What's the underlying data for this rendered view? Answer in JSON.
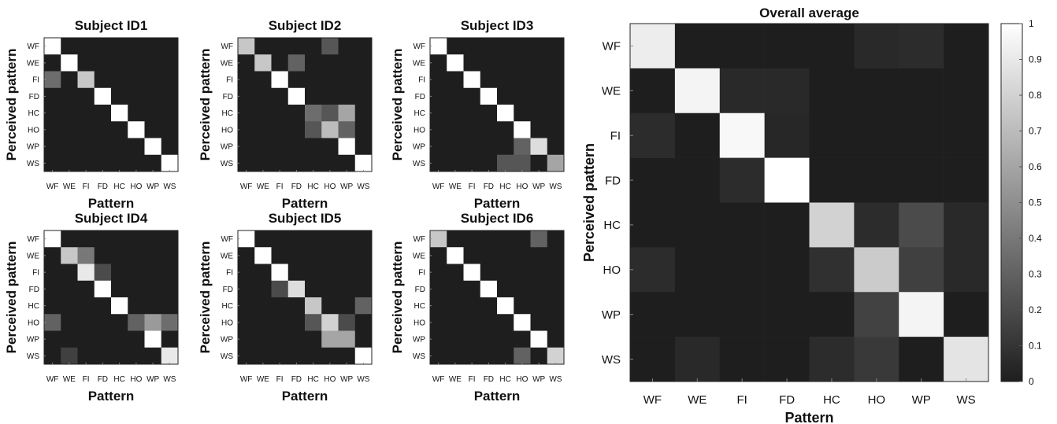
{
  "chart_data": [
    {
      "type": "heatmap",
      "title": "Subject ID1",
      "xlabel": "Pattern",
      "ylabel": "Perceived pattern",
      "x_categories": [
        "WF",
        "WE",
        "FI",
        "FD",
        "HC",
        "HO",
        "WP",
        "WS"
      ],
      "y_categories": [
        "WF",
        "WE",
        "FI",
        "FD",
        "HC",
        "HO",
        "WP",
        "WS"
      ],
      "values": [
        [
          1,
          0,
          0,
          0,
          0,
          0,
          0,
          0
        ],
        [
          0,
          1,
          0,
          0,
          0,
          0,
          0,
          0
        ],
        [
          0.35,
          0,
          0.75,
          0,
          0,
          0,
          0,
          0
        ],
        [
          0,
          0,
          0,
          1,
          0,
          0,
          0,
          0
        ],
        [
          0,
          0,
          0,
          0,
          1,
          0,
          0,
          0
        ],
        [
          0,
          0,
          0,
          0,
          0,
          1,
          0,
          0
        ],
        [
          0,
          0,
          0,
          0,
          0,
          0,
          1,
          0
        ],
        [
          0,
          0,
          0,
          0,
          0,
          0,
          0,
          1
        ]
      ]
    },
    {
      "type": "heatmap",
      "title": "Subject ID2",
      "xlabel": "Pattern",
      "ylabel": "Perceived pattern",
      "x_categories": [
        "WF",
        "WE",
        "FI",
        "FD",
        "HC",
        "HO",
        "WP",
        "WS"
      ],
      "y_categories": [
        "WF",
        "WE",
        "FI",
        "FD",
        "HC",
        "HO",
        "WP",
        "WS"
      ],
      "values": [
        [
          0.75,
          0,
          0,
          0,
          0,
          0.25,
          0,
          0
        ],
        [
          0,
          0.75,
          0,
          0.3,
          0,
          0,
          0,
          0
        ],
        [
          0,
          0,
          1,
          0,
          0,
          0,
          0,
          0
        ],
        [
          0,
          0,
          0,
          1,
          0,
          0,
          0,
          0
        ],
        [
          0,
          0,
          0,
          0,
          0.35,
          0.25,
          0.6,
          0
        ],
        [
          0,
          0,
          0,
          0,
          0.25,
          0.7,
          0.3,
          0
        ],
        [
          0,
          0,
          0,
          0,
          0,
          0,
          1,
          0
        ],
        [
          0,
          0,
          0,
          0,
          0,
          0,
          0,
          1
        ]
      ]
    },
    {
      "type": "heatmap",
      "title": "Subject ID3",
      "xlabel": "Pattern",
      "ylabel": "Perceived pattern",
      "x_categories": [
        "WF",
        "WE",
        "FI",
        "FD",
        "HC",
        "HO",
        "WP",
        "WS"
      ],
      "y_categories": [
        "WF",
        "WE",
        "FI",
        "FD",
        "HC",
        "HO",
        "WP",
        "WS"
      ],
      "values": [
        [
          1,
          0,
          0,
          0,
          0,
          0,
          0,
          0
        ],
        [
          0,
          1,
          0,
          0,
          0,
          0,
          0,
          0
        ],
        [
          0,
          0,
          1,
          0,
          0,
          0,
          0,
          0
        ],
        [
          0,
          0,
          0,
          1,
          0,
          0,
          0,
          0
        ],
        [
          0,
          0,
          0,
          0,
          1,
          0,
          0,
          0
        ],
        [
          0,
          0,
          0,
          0,
          0,
          1,
          0,
          0
        ],
        [
          0,
          0,
          0,
          0,
          0,
          0.3,
          0.85,
          0
        ],
        [
          0,
          0,
          0,
          0,
          0.25,
          0.25,
          0,
          0.6
        ]
      ]
    },
    {
      "type": "heatmap",
      "title": "Subject ID4",
      "xlabel": "Pattern",
      "ylabel": "Perceived pattern",
      "x_categories": [
        "WF",
        "WE",
        "FI",
        "FD",
        "HC",
        "HO",
        "WP",
        "WS"
      ],
      "y_categories": [
        "WF",
        "WE",
        "FI",
        "FD",
        "HC",
        "HO",
        "WP",
        "WS"
      ],
      "values": [
        [
          1,
          0,
          0,
          0,
          0,
          0,
          0,
          0
        ],
        [
          0,
          0.75,
          0.4,
          0,
          0,
          0,
          0,
          0
        ],
        [
          0,
          0,
          0.9,
          0.2,
          0,
          0,
          0,
          0
        ],
        [
          0,
          0,
          0,
          1,
          0,
          0,
          0,
          0
        ],
        [
          0,
          0,
          0,
          0,
          1,
          0,
          0,
          0
        ],
        [
          0.3,
          0,
          0,
          0,
          0,
          0.3,
          0.55,
          0.35
        ],
        [
          0,
          0,
          0,
          0,
          0,
          0,
          1,
          0
        ],
        [
          0,
          0.15,
          0,
          0,
          0,
          0,
          0,
          0.9
        ]
      ]
    },
    {
      "type": "heatmap",
      "title": "Subject ID5",
      "xlabel": "Pattern",
      "ylabel": "Perceived pattern",
      "x_categories": [
        "WF",
        "WE",
        "FI",
        "FD",
        "HC",
        "HO",
        "WP",
        "WS"
      ],
      "y_categories": [
        "WF",
        "WE",
        "FI",
        "FD",
        "HC",
        "HO",
        "WP",
        "WS"
      ],
      "values": [
        [
          1,
          0,
          0,
          0,
          0,
          0,
          0,
          0
        ],
        [
          0,
          1,
          0,
          0,
          0,
          0,
          0,
          0
        ],
        [
          0,
          0,
          1,
          0,
          0,
          0,
          0,
          0
        ],
        [
          0,
          0,
          0.2,
          0.85,
          0,
          0,
          0,
          0
        ],
        [
          0,
          0,
          0,
          0,
          0.75,
          0,
          0,
          0.3
        ],
        [
          0,
          0,
          0,
          0,
          0.25,
          0.8,
          0.2,
          0
        ],
        [
          0,
          0,
          0,
          0,
          0,
          0.6,
          0.6,
          0
        ],
        [
          0,
          0,
          0,
          0,
          0,
          0,
          0,
          1
        ]
      ]
    },
    {
      "type": "heatmap",
      "title": "Subject ID6",
      "xlabel": "Pattern",
      "ylabel": "Perceived pattern",
      "x_categories": [
        "WF",
        "WE",
        "FI",
        "FD",
        "HC",
        "HO",
        "WP",
        "WS"
      ],
      "y_categories": [
        "WF",
        "WE",
        "FI",
        "FD",
        "HC",
        "HO",
        "WP",
        "WS"
      ],
      "values": [
        [
          0.75,
          0,
          0,
          0,
          0,
          0,
          0.3,
          0
        ],
        [
          0,
          1,
          0,
          0,
          0,
          0,
          0,
          0
        ],
        [
          0,
          0,
          1,
          0,
          0,
          0,
          0,
          0
        ],
        [
          0,
          0,
          0,
          1,
          0,
          0,
          0,
          0
        ],
        [
          0,
          0,
          0,
          0,
          1,
          0,
          0,
          0
        ],
        [
          0,
          0,
          0,
          0,
          0,
          1,
          0,
          0
        ],
        [
          0,
          0,
          0,
          0,
          0,
          0,
          1,
          0
        ],
        [
          0,
          0,
          0,
          0,
          0,
          0.3,
          0,
          0.8
        ]
      ]
    },
    {
      "type": "heatmap",
      "title": "Overall average",
      "xlabel": "Pattern",
      "ylabel": "Perceived pattern",
      "x_categories": [
        "WF",
        "WE",
        "FI",
        "FD",
        "HC",
        "HO",
        "WP",
        "WS"
      ],
      "y_categories": [
        "WF",
        "WE",
        "FI",
        "FD",
        "HC",
        "HO",
        "WP",
        "WS"
      ],
      "values": [
        [
          0.92,
          0,
          0,
          0,
          0,
          0.05,
          0.06,
          0
        ],
        [
          0,
          0.95,
          0.05,
          0.05,
          0,
          0,
          0,
          0
        ],
        [
          0.06,
          0,
          0.97,
          0.04,
          0,
          0,
          0,
          0
        ],
        [
          0,
          0,
          0.06,
          1,
          0,
          0,
          0,
          0
        ],
        [
          0,
          0,
          0,
          0,
          0.8,
          0.06,
          0.2,
          0.05
        ],
        [
          0.06,
          0,
          0,
          0,
          0.08,
          0.77,
          0.15,
          0.05
        ],
        [
          0,
          0,
          0,
          0,
          0,
          0.16,
          0.95,
          0
        ],
        [
          0,
          0.05,
          0,
          0,
          0.06,
          0.12,
          0,
          0.88
        ]
      ],
      "colorbar": {
        "range": [
          0,
          1
        ],
        "ticks": [
          "0",
          "0.1",
          "0.2",
          "0.3",
          "0.4",
          "0.5",
          "0.6",
          "0.7",
          "0.8",
          "0.9",
          "1"
        ]
      }
    }
  ]
}
